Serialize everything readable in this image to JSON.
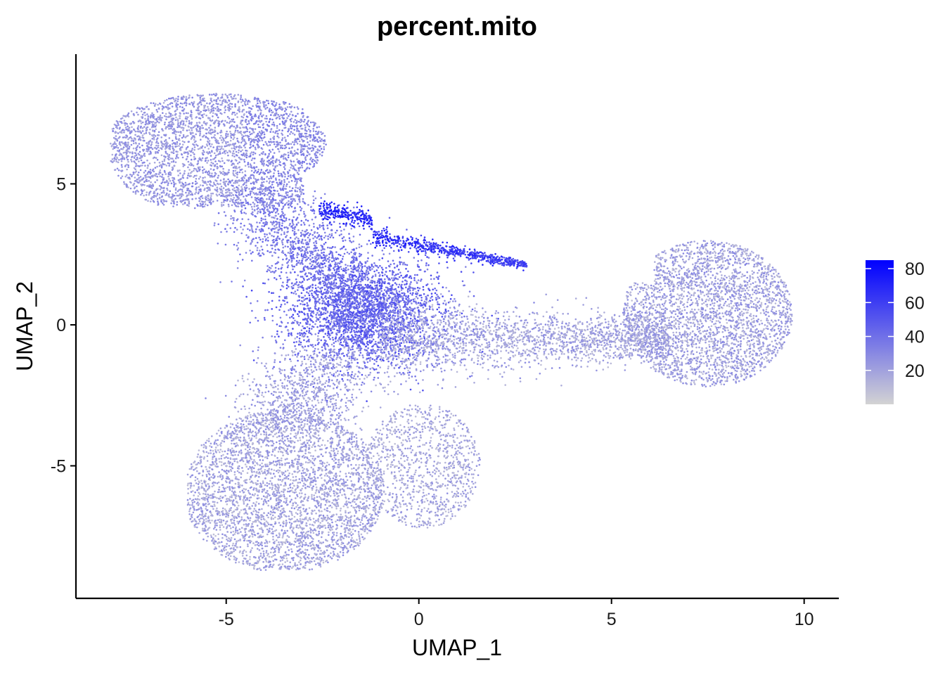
{
  "chart_data": {
    "type": "scatter",
    "title": "percent.mito",
    "xlabel": "UMAP_1",
    "ylabel": "UMAP_2",
    "xlim": [
      -8.9,
      10.9
    ],
    "ylim": [
      -9.7,
      9.6
    ],
    "x_ticks": [
      -5,
      0,
      5,
      10
    ],
    "x_tick_labels": [
      "-5",
      "0",
      "5",
      "10"
    ],
    "y_ticks": [
      -5,
      0,
      5
    ],
    "y_tick_labels": [
      "-5",
      "0",
      "5"
    ],
    "grid": false,
    "legend_position": "right",
    "color_scale": {
      "variable": "percent.mito",
      "low_color": "#d3d3d3",
      "high_color": "#0000ff",
      "range": [
        0,
        85
      ],
      "ticks": [
        20,
        40,
        60,
        80
      ],
      "tick_labels": [
        "20",
        "40",
        "60",
        "80"
      ]
    },
    "point_density_regions": [
      {
        "region": "upper-left cluster",
        "center": [
          -5.6,
          6.2
        ],
        "typical_percent_mito": 25
      },
      {
        "region": "bottom cluster",
        "center": [
          -3.8,
          -5.8
        ],
        "typical_percent_mito": 18
      },
      {
        "region": "right cluster",
        "center": [
          7.6,
          0.2
        ],
        "typical_percent_mito": 18
      },
      {
        "region": "central junction",
        "center": [
          -1.4,
          0.6
        ],
        "typical_percent_mito": 42
      },
      {
        "region": "high-mito streak",
        "center": [
          0.5,
          2.9
        ],
        "typical_percent_mito": 75
      }
    ]
  }
}
